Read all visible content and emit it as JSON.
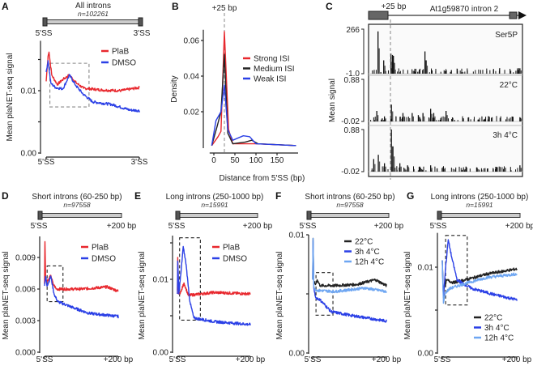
{
  "colors": {
    "red": "#e8282e",
    "blue": "#2b40e6",
    "lightblue": "#6ea6f2",
    "black": "#222222",
    "grey": "#888888"
  },
  "chart_data": [
    {
      "id": "A",
      "panel_label": "A",
      "type": "line",
      "title": "All introns",
      "n_label": "n=102261",
      "gene_left": "5'SS",
      "gene_right": "3'SS",
      "ylabel": "Mean plaNET-seq signal",
      "xlim": [
        0,
        1
      ],
      "ylim": [
        0,
        0.018
      ],
      "xticks": [
        {
          "v": 0,
          "label": "5'SS"
        },
        {
          "v": 1,
          "label": "3'SS"
        }
      ],
      "yticks": [
        {
          "v": 0,
          "label": "0.00"
        },
        {
          "v": 0.005,
          "label": ""
        },
        {
          "v": 0.01,
          "label": "0.01"
        },
        {
          "v": 0.015,
          "label": ""
        }
      ],
      "highlight_box": {
        "x": [
          0.04,
          0.46
        ],
        "y": [
          0.0074,
          0.0144
        ]
      },
      "legend": "top-right",
      "series": [
        {
          "name": "PlaB",
          "color": "red",
          "points": [
            [
              0,
              0.0115
            ],
            [
              0.02,
              0.0155
            ],
            [
              0.03,
              0.0162
            ],
            [
              0.06,
              0.0125
            ],
            [
              0.12,
              0.011
            ],
            [
              0.18,
              0.0118
            ],
            [
              0.25,
              0.0125
            ],
            [
              0.32,
              0.0113
            ],
            [
              0.4,
              0.0104
            ],
            [
              0.6,
              0.0101
            ],
            [
              0.8,
              0.01
            ],
            [
              1,
              0.0105
            ]
          ]
        },
        {
          "name": "DMSO",
          "color": "blue",
          "points": [
            [
              0,
              0.013
            ],
            [
              0.02,
              0.0148
            ],
            [
              0.05,
              0.0112
            ],
            [
              0.1,
              0.0105
            ],
            [
              0.18,
              0.0103
            ],
            [
              0.25,
              0.0125
            ],
            [
              0.32,
              0.0108
            ],
            [
              0.4,
              0.0094
            ],
            [
              0.5,
              0.0082
            ],
            [
              0.7,
              0.0078
            ],
            [
              0.9,
              0.0069
            ],
            [
              1,
              0.0068
            ]
          ]
        }
      ]
    },
    {
      "id": "B",
      "panel_label": "B",
      "type": "line",
      "xlabel": "Distance from 5'SS (bp)",
      "ylabel": "Density",
      "annotation": "+25 bp",
      "vline": 25,
      "xlim": [
        -10,
        200
      ],
      "ylim": [
        0,
        0.066
      ],
      "xticks": [
        {
          "v": 0,
          "label": "0"
        },
        {
          "v": 50,
          "label": "50"
        },
        {
          "v": 100,
          "label": "100"
        },
        {
          "v": 150,
          "label": "150"
        }
      ],
      "yticks": [
        {
          "v": 0.02,
          "label": "0.02"
        },
        {
          "v": 0.04,
          "label": "0.04"
        },
        {
          "v": 0.06,
          "label": "0.06"
        }
      ],
      "legend": "top-right",
      "series": [
        {
          "name": "Strong ISI",
          "color": "red",
          "points": [
            [
              -5,
              0.001
            ],
            [
              10,
              0.006
            ],
            [
              17,
              0.009
            ],
            [
              25,
              0.065
            ],
            [
              35,
              0.01
            ],
            [
              45,
              0.002
            ],
            [
              75,
              0.002
            ],
            [
              100,
              0.002
            ],
            [
              195,
              0.001
            ]
          ]
        },
        {
          "name": "Medium ISI",
          "color": "black",
          "points": [
            [
              -5,
              0.001
            ],
            [
              8,
              0.012
            ],
            [
              17,
              0.02
            ],
            [
              25,
              0.052
            ],
            [
              33,
              0.008
            ],
            [
              45,
              0.002
            ],
            [
              75,
              0.003
            ],
            [
              90,
              0.004
            ],
            [
              105,
              0.002
            ],
            [
              195,
              0.001
            ]
          ]
        },
        {
          "name": "Weak ISI",
          "color": "blue",
          "points": [
            [
              -5,
              0.001
            ],
            [
              5,
              0.015
            ],
            [
              17,
              0.02
            ],
            [
              25,
              0.035
            ],
            [
              33,
              0.01
            ],
            [
              45,
              0.004
            ],
            [
              70,
              0.0065
            ],
            [
              85,
              0.006
            ],
            [
              100,
              0.002
            ],
            [
              195,
              0.001
            ]
          ]
        }
      ]
    },
    {
      "id": "D",
      "panel_label": "D",
      "type": "line",
      "title": "Short introns (60-250 bp)",
      "n_label": "n=97558",
      "gene_left": "5'SS",
      "gene_right": "+200 bp",
      "ylabel": "Mean plaNET-seq signal",
      "xlim": [
        0,
        200
      ],
      "ylim": [
        0,
        0.011
      ],
      "xticks": [
        {
          "v": 0,
          "label": "5'SS"
        },
        {
          "v": 200,
          "label": "+200 bp"
        }
      ],
      "yticks": [
        {
          "v": 0,
          "label": "0.000"
        },
        {
          "v": 0.003,
          "label": "0.003"
        },
        {
          "v": 0.006,
          "label": "0.006"
        },
        {
          "v": 0.009,
          "label": "0.009"
        }
      ],
      "highlight_box": {
        "x": [
          7,
          50
        ],
        "y": [
          0.0048,
          0.0082
        ]
      },
      "legend": "top-right",
      "series": [
        {
          "name": "PlaB",
          "color": "red",
          "points": [
            [
              0,
              0.0065
            ],
            [
              1,
              0.0105
            ],
            [
              3,
              0.0068
            ],
            [
              10,
              0.0068
            ],
            [
              17,
              0.0073
            ],
            [
              23,
              0.0065
            ],
            [
              32,
              0.006
            ],
            [
              100,
              0.006
            ],
            [
              170,
              0.0062
            ],
            [
              200,
              0.0058
            ]
          ]
        },
        {
          "name": "DMSO",
          "color": "blue",
          "points": [
            [
              0,
              0.0063
            ],
            [
              3,
              0.0072
            ],
            [
              7,
              0.0063
            ],
            [
              17,
              0.0072
            ],
            [
              26,
              0.0055
            ],
            [
              36,
              0.0048
            ],
            [
              80,
              0.0042
            ],
            [
              120,
              0.0037
            ],
            [
              200,
              0.0034
            ]
          ]
        }
      ]
    },
    {
      "id": "E",
      "panel_label": "E",
      "type": "line",
      "title": "Long introns (250-1000 bp)",
      "n_label": "n=15991",
      "gene_left": "5'SS",
      "gene_right": "+200 bp",
      "ylabel": "Mean plaNET-seq signal",
      "xlim": [
        0,
        200
      ],
      "ylim": [
        0,
        0.016
      ],
      "xticks": [
        {
          "v": 0,
          "label": "5'SS"
        },
        {
          "v": 200,
          "label": "+200 bp"
        }
      ],
      "yticks": [
        {
          "v": 0,
          "label": "0.00"
        },
        {
          "v": 0.005,
          "label": ""
        },
        {
          "v": 0.01,
          "label": "0.01"
        },
        {
          "v": 0.015,
          "label": ""
        }
      ],
      "highlight_box": {
        "x": [
          6,
          63
        ],
        "y": [
          0.0044,
          0.0157
        ]
      },
      "legend": "top-right",
      "series": [
        {
          "name": "PlaB",
          "color": "red",
          "points": [
            [
              0,
              0.0085
            ],
            [
              1,
              0.013
            ],
            [
              3,
              0.008
            ],
            [
              10,
              0.0083
            ],
            [
              18,
              0.0095
            ],
            [
              30,
              0.0078
            ],
            [
              100,
              0.0082
            ],
            [
              200,
              0.008
            ]
          ]
        },
        {
          "name": "DMSO",
          "color": "blue",
          "points": [
            [
              0,
              0.008
            ],
            [
              1,
              0.0125
            ],
            [
              4,
              0.008
            ],
            [
              10,
              0.011
            ],
            [
              16,
              0.0145
            ],
            [
              24,
              0.012
            ],
            [
              34,
              0.007
            ],
            [
              45,
              0.0047
            ],
            [
              100,
              0.0042
            ],
            [
              200,
              0.0038
            ]
          ]
        }
      ]
    },
    {
      "id": "F",
      "panel_label": "F",
      "type": "line",
      "title": "Short introns (60-250 bp)",
      "n_label": "n=97558",
      "gene_left": "5'SS",
      "gene_right": "+200 bp",
      "ylabel": "Mean plaNET-seq signal",
      "xlim": [
        0,
        200
      ],
      "ylim": [
        0,
        0.01
      ],
      "xticks": [
        {
          "v": 0,
          "label": "5'SS"
        },
        {
          "v": 200,
          "label": "+200 bp"
        }
      ],
      "yticks": [
        {
          "v": 0,
          "label": "0.00"
        },
        {
          "v": 0.005,
          "label": ""
        },
        {
          "v": 0.01,
          "label": "0.01"
        }
      ],
      "highlight_box": {
        "x": [
          9,
          55
        ],
        "y": [
          0.0032,
          0.0068
        ]
      },
      "legend": "top-right",
      "series": [
        {
          "name": "22°C",
          "color": "black",
          "points": [
            [
              0,
              0.0062
            ],
            [
              1,
              0.0097
            ],
            [
              3,
              0.006
            ],
            [
              8,
              0.0058
            ],
            [
              12,
              0.0062
            ],
            [
              20,
              0.0057
            ],
            [
              60,
              0.0057
            ],
            [
              120,
              0.0058
            ],
            [
              170,
              0.0062
            ],
            [
              200,
              0.0057
            ]
          ]
        },
        {
          "name": "3h 4°C",
          "color": "blue",
          "points": [
            [
              0,
              0.0063
            ],
            [
              1,
              0.0095
            ],
            [
              3,
              0.0055
            ],
            [
              8,
              0.0047
            ],
            [
              20,
              0.0045
            ],
            [
              50,
              0.0035
            ],
            [
              100,
              0.0032
            ],
            [
              200,
              0.0027
            ]
          ]
        },
        {
          "name": "12h 4°C",
          "color": "lightblue",
          "points": [
            [
              0,
              0.0062
            ],
            [
              1,
              0.0097
            ],
            [
              3,
              0.0056
            ],
            [
              10,
              0.0053
            ],
            [
              60,
              0.0052
            ],
            [
              140,
              0.0055
            ],
            [
              200,
              0.0052
            ]
          ]
        }
      ]
    },
    {
      "id": "G",
      "panel_label": "G",
      "type": "line",
      "title": "Long introns (250-1000 bp)",
      "n_label": "n=15991",
      "gene_left": "5'SS",
      "gene_right": "+200 bp",
      "ylabel": "Mean plaNET-seq signal",
      "xlim": [
        0,
        200
      ],
      "ylim": [
        0,
        0.014
      ],
      "xticks": [
        {
          "v": 0,
          "label": "5'SS"
        },
        {
          "v": 200,
          "label": "+200 bp"
        }
      ],
      "yticks": [
        {
          "v": 0,
          "label": "0.00"
        },
        {
          "v": 0.005,
          "label": ""
        },
        {
          "v": 0.01,
          "label": "0.01"
        }
      ],
      "highlight_box": {
        "x": [
          9,
          67
        ],
        "y": [
          0.0056,
          0.0137
        ]
      },
      "legend": "bottom-right",
      "series": [
        {
          "name": "22°C",
          "color": "black",
          "points": [
            [
              0,
              0.0108
            ],
            [
              3,
              0.0065
            ],
            [
              6,
              0.0078
            ],
            [
              12,
              0.0085
            ],
            [
              30,
              0.0082
            ],
            [
              60,
              0.0085
            ],
            [
              120,
              0.0092
            ],
            [
              200,
              0.0098
            ]
          ]
        },
        {
          "name": "3h 4°C",
          "color": "blue",
          "points": [
            [
              0,
              0.0108
            ],
            [
              3,
              0.0065
            ],
            [
              8,
              0.0095
            ],
            [
              16,
              0.0132
            ],
            [
              26,
              0.011
            ],
            [
              40,
              0.0085
            ],
            [
              80,
              0.0075
            ],
            [
              140,
              0.0068
            ],
            [
              200,
              0.0062
            ]
          ]
        },
        {
          "name": "12h 4°C",
          "color": "lightblue",
          "points": [
            [
              0,
              0.0108
            ],
            [
              3,
              0.0058
            ],
            [
              8,
              0.007
            ],
            [
              20,
              0.0075
            ],
            [
              40,
              0.0078
            ],
            [
              70,
              0.0082
            ],
            [
              120,
              0.0088
            ],
            [
              200,
              0.0092
            ]
          ]
        }
      ]
    }
  ],
  "panel_c": {
    "panel_label": "C",
    "annotation": "+25 bp",
    "gene_label": "At1g59870 intron 2",
    "ylabel": "Mean signal",
    "tracks": [
      {
        "label": "Ser5P",
        "ymax": "266",
        "ymin": "-1.0",
        "peaks": [
          [
            0.058,
            0.95
          ],
          [
            0.095,
            0.3
          ],
          [
            0.142,
            0.45
          ],
          [
            0.152,
            0.42
          ],
          [
            0.158,
            0.4
          ],
          [
            0.363,
            0.5
          ],
          [
            0.37,
            0.3
          ],
          [
            0.98,
            0.12
          ]
        ]
      },
      {
        "label": "22°C",
        "ymax": "0.88",
        "ymin": "-0.02",
        "peaks": [
          [
            0.05,
            0.25
          ],
          [
            0.1,
            0.12
          ],
          [
            0.145,
            0.4
          ],
          [
            0.22,
            0.2
          ],
          [
            0.28,
            0.2
          ],
          [
            0.32,
            0.15
          ],
          [
            0.35,
            0.2
          ],
          [
            0.4,
            0.3
          ],
          [
            0.42,
            0.2
          ],
          [
            0.5,
            0.25
          ],
          [
            0.98,
            0.1
          ]
        ]
      },
      {
        "label": "3h 4°C",
        "ymax": "0.88",
        "ymin": "-0.02",
        "peaks": [
          [
            0.03,
            0.3
          ],
          [
            0.06,
            0.4
          ],
          [
            0.1,
            0.2
          ],
          [
            0.145,
            1.0
          ],
          [
            0.155,
            0.6
          ],
          [
            0.2,
            0.2
          ],
          [
            0.25,
            0.15
          ],
          [
            0.33,
            0.1
          ],
          [
            0.4,
            0.15
          ],
          [
            0.7,
            0.1
          ],
          [
            0.98,
            0.15
          ]
        ]
      }
    ]
  }
}
